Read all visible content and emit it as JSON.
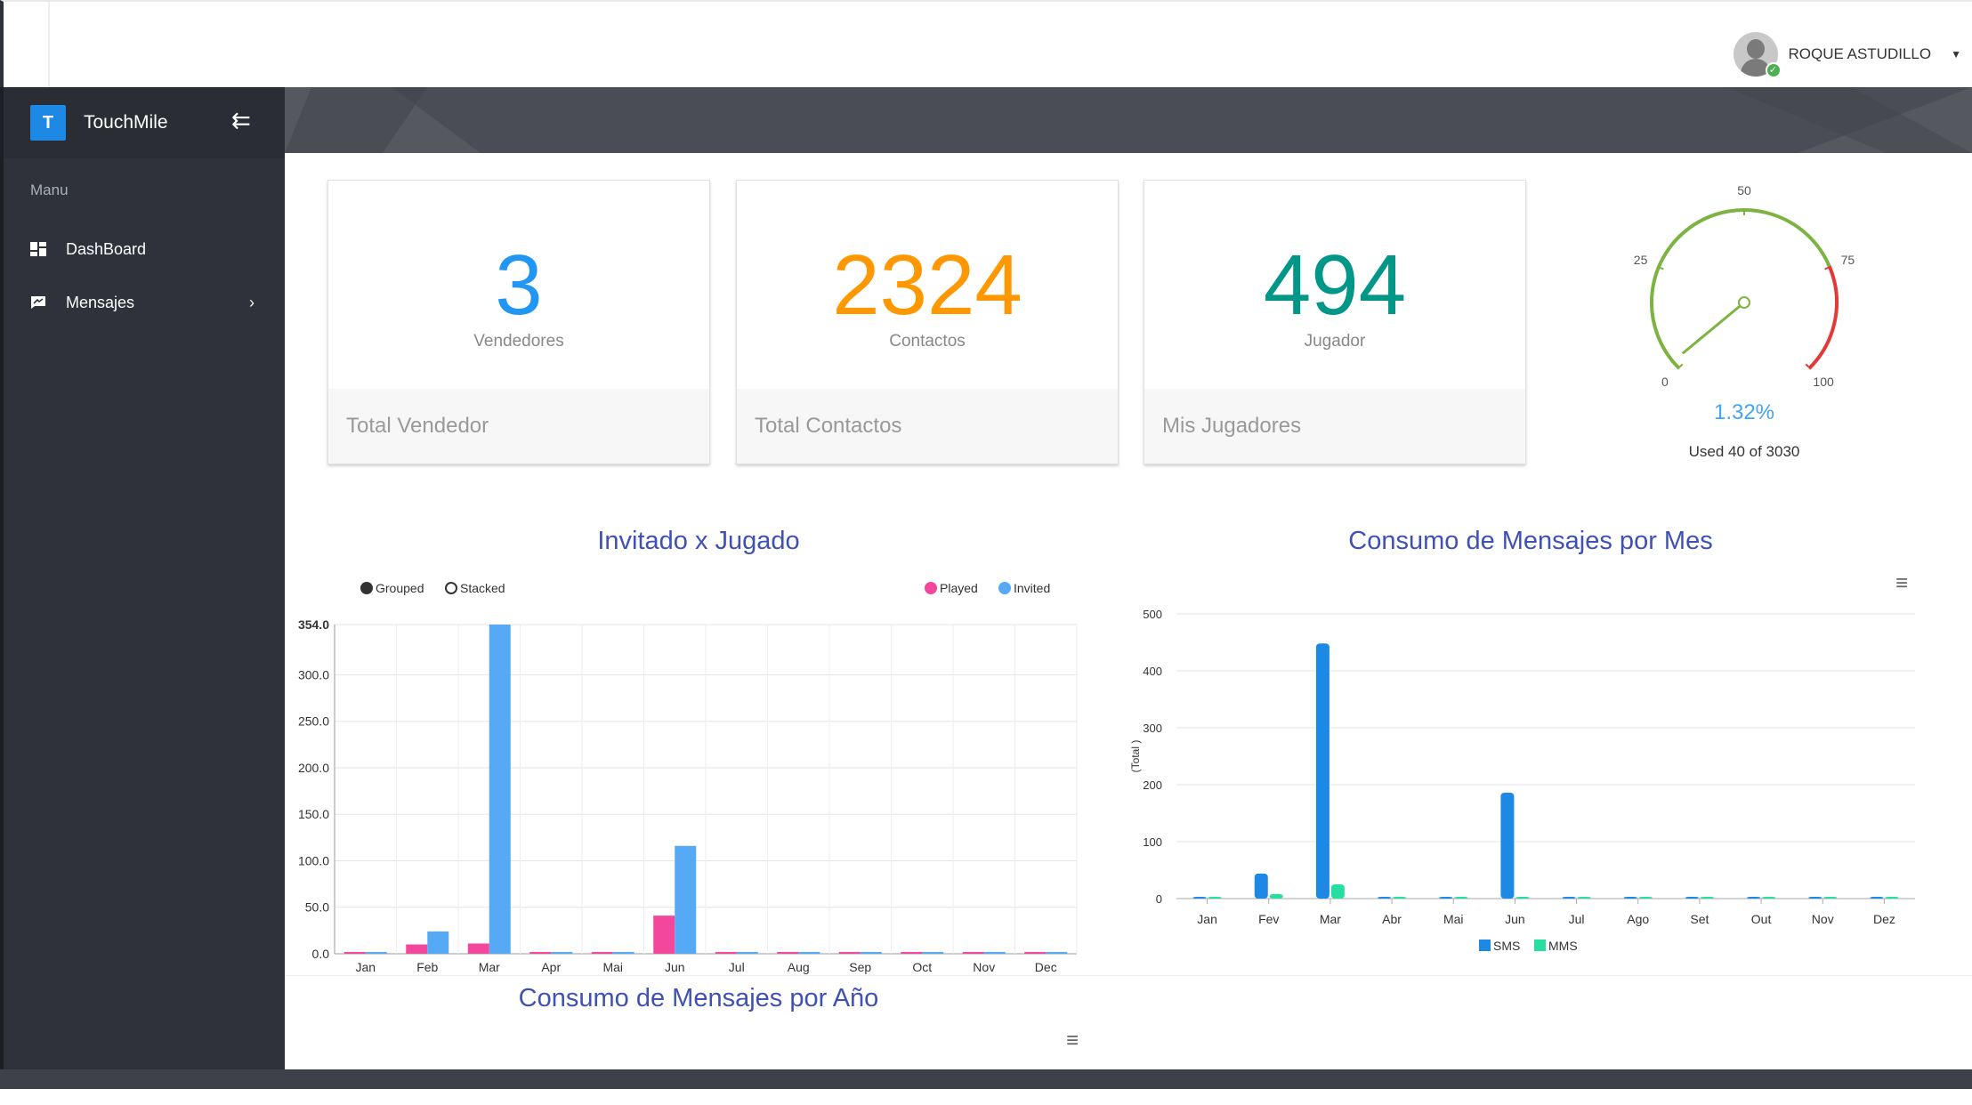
{
  "header": {
    "user_name": "ROQUE ASTUDILLO",
    "caret": "▼"
  },
  "sidebar": {
    "brand_letter": "T",
    "brand_name": "TouchMile",
    "collapse_icon": "⇇",
    "menu_title": "Manu",
    "items": [
      {
        "label": "DashBoard",
        "icon": "dashboard-icon"
      },
      {
        "label": "Mensajes",
        "icon": "message-icon",
        "chevron": "›"
      }
    ]
  },
  "stats": [
    {
      "value": "3",
      "label": "Vendedores",
      "footer": "Total Vendedor",
      "color": "#2196f3"
    },
    {
      "value": "2324",
      "label": "Contactos",
      "footer": "Total Contactos",
      "color": "#ff9800"
    },
    {
      "value": "494",
      "label": "Jugador",
      "footer": "Mis Jugadores",
      "color": "#009688"
    }
  ],
  "gauge": {
    "ticks": [
      "0",
      "25",
      "50",
      "75",
      "100"
    ],
    "percent_text": "1.32%",
    "used_text": "Used 40 of 3030",
    "value": 40,
    "max": 3030
  },
  "chart_data": [
    {
      "type": "bar",
      "title": "Invitado x Jugado",
      "controls": [
        "Grouped",
        "Stacked"
      ],
      "categories": [
        "Jan",
        "Feb",
        "Mar",
        "Apr",
        "Mai",
        "Jun",
        "Jul",
        "Aug",
        "Sep",
        "Oct",
        "Nov",
        "Dec"
      ],
      "series": [
        {
          "name": "Played",
          "color": "#f2479a",
          "values": [
            0,
            10,
            11,
            0,
            0,
            41,
            0,
            0,
            0,
            0,
            0,
            0
          ]
        },
        {
          "name": "Invited",
          "color": "#56a9f5",
          "values": [
            0,
            24,
            354,
            0,
            0,
            116,
            0,
            0,
            0,
            0,
            0,
            0
          ]
        }
      ],
      "yticks": [
        "0.0",
        "50.0",
        "100.0",
        "150.0",
        "200.0",
        "250.0",
        "300.0",
        "354.0"
      ],
      "ylim": [
        0,
        354
      ],
      "legend_position": "top-right"
    },
    {
      "type": "bar",
      "title": "Consumo de Mensajes por Mes",
      "ylabel": "(Total )",
      "categories": [
        "Jan",
        "Fev",
        "Mar",
        "Abr",
        "Mai",
        "Jun",
        "Jul",
        "Ago",
        "Set",
        "Out",
        "Nov",
        "Dez"
      ],
      "series": [
        {
          "name": "SMS",
          "color": "#1e88e5",
          "values": [
            0,
            44,
            448,
            0,
            0,
            186,
            0,
            0,
            0,
            0,
            0,
            0
          ]
        },
        {
          "name": "MMS",
          "color": "#26dea0",
          "values": [
            0,
            8,
            25,
            0,
            0,
            0,
            0,
            0,
            0,
            0,
            0,
            0
          ]
        }
      ],
      "yticks": [
        "0",
        "100",
        "200",
        "300",
        "400",
        "500"
      ],
      "ylim": [
        0,
        500
      ],
      "legend_position": "bottom",
      "menu_icon": "≡"
    },
    {
      "type": "bar",
      "title": "Consumo de Mensajes por Año",
      "menu_icon": "≡"
    }
  ]
}
